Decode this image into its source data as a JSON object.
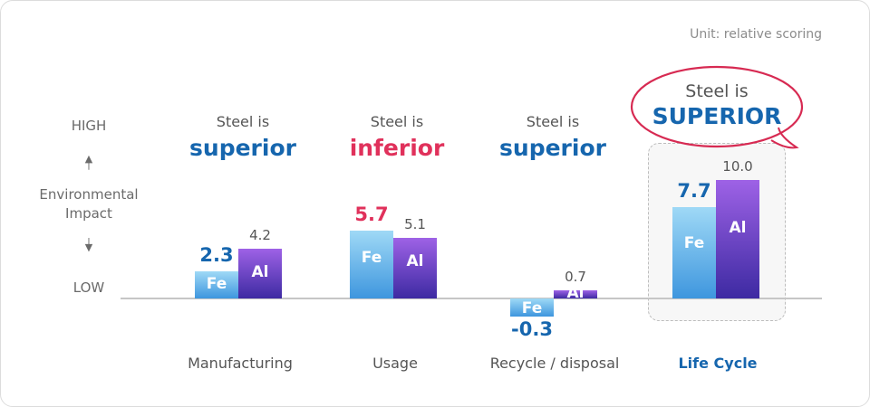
{
  "unit_label": "Unit: relative scoring",
  "y_axis": {
    "high": "HIGH",
    "label_line1": "Environmental",
    "label_line2": "Impact",
    "low": "LOW",
    "up_arrow": "arrow-up-icon",
    "down_arrow": "arrow-down-icon"
  },
  "chart_data": {
    "type": "bar",
    "ylabel": "Environmental Impact",
    "series": [
      {
        "name": "Fe",
        "values": [
          2.3,
          5.7,
          -0.3,
          7.7
        ]
      },
      {
        "name": "Al",
        "values": [
          4.2,
          5.1,
          0.7,
          10.0
        ]
      }
    ],
    "categories": [
      "Manufacturing",
      "Usage",
      "Recycle / disposal",
      "Life Cycle"
    ],
    "value_labels": {
      "fe": [
        "2.3",
        "5.7",
        "-0.3",
        "7.7"
      ],
      "al": [
        "4.2",
        "5.1",
        "0.7",
        "10.0"
      ]
    },
    "verdicts": [
      {
        "small": "Steel is",
        "big": "superior"
      },
      {
        "small": "Steel is",
        "big": "inferior"
      },
      {
        "small": "Steel is",
        "big": "superior"
      },
      {
        "small": "Steel is",
        "big": "SUPERIOR"
      }
    ],
    "colors": {
      "fe_top": "#9fd9f6",
      "fe_bottom": "#3e96de",
      "al_top": "#9e62e6",
      "al_bottom": "#3d2aa2",
      "superior": "#1666ae",
      "inferior": "#e0315b",
      "callout_ring": "#d72a52"
    },
    "highlight_category": "Life Cycle"
  }
}
